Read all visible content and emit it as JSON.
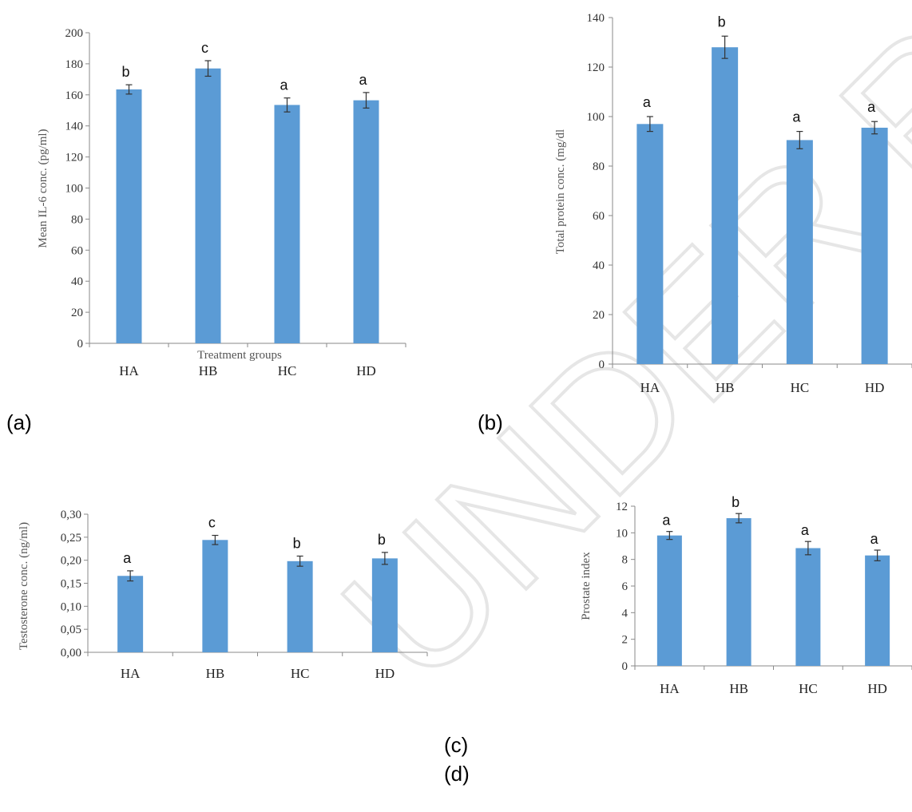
{
  "watermark": "UNDER REVIEW",
  "chart_data": [
    {
      "type": "bar",
      "panel": "(a)",
      "categories": [
        "HA",
        "HB",
        "HC",
        "HD"
      ],
      "values": [
        163.5,
        177,
        153.5,
        156.5
      ],
      "errors": [
        3,
        5,
        4.5,
        5
      ],
      "significance": [
        "b",
        "c",
        "a",
        "a"
      ],
      "xlabel": "Treatment groups",
      "ylabel": "Mean IL-6 conc. (pg/ml)",
      "ylim": [
        0,
        200
      ],
      "yticks": [
        "0",
        "20",
        "40",
        "60",
        "80",
        "100",
        "120",
        "140",
        "160",
        "180",
        "200"
      ],
      "bar_color": "#5b9bd5"
    },
    {
      "type": "bar",
      "panel": "(b)",
      "categories": [
        "HA",
        "HB",
        "HC",
        "HD"
      ],
      "values": [
        97,
        128,
        90.5,
        95.5
      ],
      "errors": [
        3,
        4.5,
        3.5,
        2.5
      ],
      "significance": [
        "a",
        "b",
        "a",
        "a"
      ],
      "xlabel": "",
      "ylabel": "Total protein conc. (mg/dl",
      "ylim": [
        0,
        140
      ],
      "yticks": [
        "0",
        "20",
        "40",
        "60",
        "80",
        "100",
        "120",
        "140"
      ],
      "bar_color": "#5b9bd5"
    },
    {
      "type": "bar",
      "panel": "(c)",
      "categories": [
        "HA",
        "HB",
        "HC",
        "HD"
      ],
      "values": [
        0.166,
        0.244,
        0.198,
        0.204
      ],
      "errors": [
        0.011,
        0.01,
        0.011,
        0.013
      ],
      "significance": [
        "a",
        "c",
        "b",
        "b"
      ],
      "xlabel": "",
      "ylabel": "Testosterone conc. (ng/ml)",
      "ylim": [
        0,
        0.3
      ],
      "yticks": [
        "0,00",
        "0,05",
        "0,10",
        "0,15",
        "0,20",
        "0,25",
        "0,30"
      ],
      "bar_color": "#5b9bd5"
    },
    {
      "type": "bar",
      "panel": "(d)",
      "categories": [
        "HA",
        "HB",
        "HC",
        "HD"
      ],
      "values": [
        9.8,
        11.1,
        8.85,
        8.3
      ],
      "errors": [
        0.3,
        0.35,
        0.5,
        0.4
      ],
      "significance": [
        "a",
        "b",
        "a",
        "a"
      ],
      "xlabel": "",
      "ylabel": "Prostate index",
      "ylim": [
        0,
        12
      ],
      "yticks": [
        "0",
        "2",
        "4",
        "6",
        "8",
        "10",
        "12"
      ],
      "bar_color": "#5b9bd5"
    }
  ]
}
